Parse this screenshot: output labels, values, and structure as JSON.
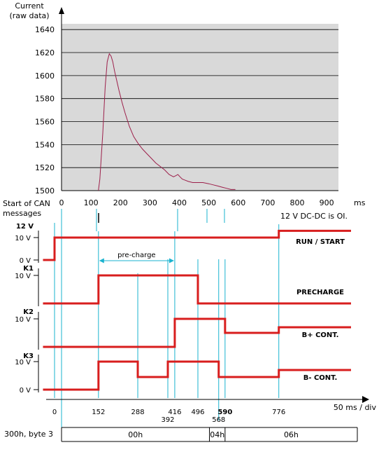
{
  "chart_data": [
    {
      "type": "line",
      "ylabel_line1": "Current",
      "ylabel_line2": "(raw data)",
      "xunit": "ms",
      "xlim": [
        0,
        950
      ],
      "ylim": [
        1500,
        1645
      ],
      "xticks": [
        0,
        100,
        200,
        300,
        400,
        500,
        600,
        700,
        800,
        900
      ],
      "yticks": [
        1500,
        1520,
        1540,
        1560,
        1580,
        1600,
        1620,
        1640
      ],
      "grid": true,
      "series": [
        {
          "color": "#9c1f4a",
          "x": [
            125,
            130,
            140,
            148,
            155,
            162,
            168,
            174,
            180,
            188,
            195,
            205,
            215,
            230,
            245,
            260,
            275,
            290,
            305,
            320,
            335,
            350,
            365,
            380,
            388,
            395,
            402,
            410,
            420,
            430,
            445,
            460,
            480,
            500,
            515,
            530,
            545,
            560,
            575,
            590
          ],
          "y": [
            1500,
            1510,
            1550,
            1590,
            1612,
            1619,
            1617,
            1612,
            1604,
            1595,
            1587,
            1577,
            1568,
            1556,
            1547,
            1541,
            1536,
            1532,
            1528,
            1524,
            1521,
            1518,
            1514,
            1512,
            1513,
            1514,
            1512,
            1510,
            1509,
            1508,
            1507,
            1507,
            1507,
            1506,
            1505,
            1504,
            1503,
            1502,
            1501,
            1501
          ]
        }
      ]
    },
    {
      "type": "timing",
      "can_label_line1": "Start of CAN",
      "can_label_line2": "messages",
      "event_times": [
        0,
        152,
        288,
        392,
        416,
        496,
        568,
        590,
        776
      ],
      "event_labels": [
        "0",
        "152",
        "288",
        "392",
        "416",
        "496",
        "568",
        "590",
        "776"
      ],
      "xunit_label": "50 ms / div",
      "note_12v": "12 V DC-DC is OI.",
      "precharge_label": "pre-charge",
      "signals": [
        {
          "label": "12 V",
          "name": "RUN / START",
          "tick_high": "10 V",
          "tick_low": "0 V",
          "levels": [
            [
              -40,
              0
            ],
            [
              0,
              1
            ],
            [
              776,
              1.3
            ],
            [
              1090,
              1.3
            ]
          ]
        },
        {
          "label": "K1",
          "name": "PRECHARGE",
          "tick_high": "10 V",
          "tick_low": "",
          "levels": [
            [
              -40,
              0
            ],
            [
              152,
              1
            ],
            [
              496,
              0
            ],
            [
              1090,
              0
            ]
          ]
        },
        {
          "label": "K2",
          "name": "B+ CONT.",
          "tick_high": "10 V",
          "tick_low": "",
          "levels": [
            [
              -40,
              0
            ],
            [
              416,
              1
            ],
            [
              590,
              0.5
            ],
            [
              776,
              0.7
            ],
            [
              1090,
              0.7
            ]
          ]
        },
        {
          "label": "K3",
          "name": "B- CONT.",
          "tick_high": "10 V",
          "tick_low": "0 V",
          "levels": [
            [
              -40,
              0
            ],
            [
              152,
              1
            ],
            [
              288,
              0.45
            ],
            [
              392,
              1
            ],
            [
              568,
              0.45
            ],
            [
              776,
              0.7
            ],
            [
              1090,
              0.7
            ]
          ]
        }
      ],
      "can_bus": {
        "label": "300h, byte 3",
        "segments": [
          {
            "value": "00h",
            "start": 20,
            "end": 536
          },
          {
            "value": "04h",
            "start": 536,
            "end": 590
          },
          {
            "value": "06h",
            "start": 590,
            "end": 1090
          }
        ]
      }
    }
  ]
}
